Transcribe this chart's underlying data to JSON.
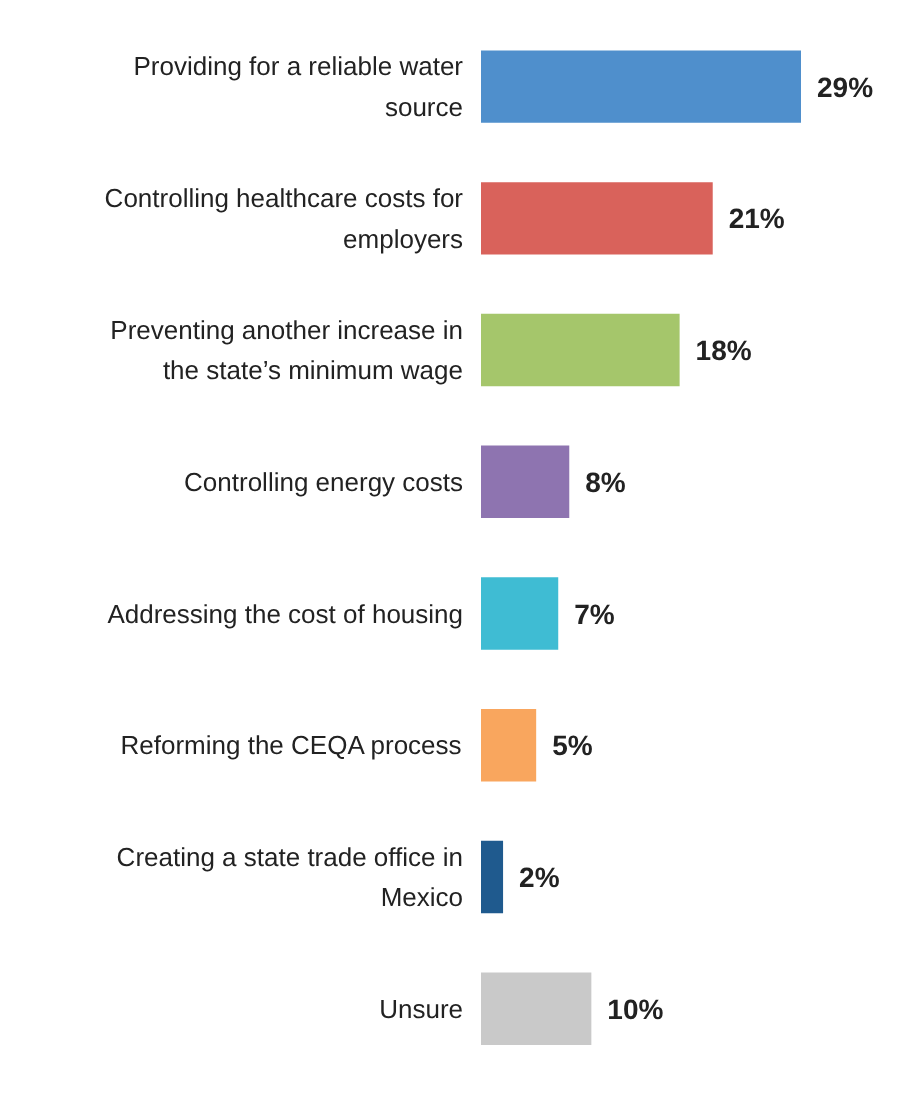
{
  "chart_data": {
    "type": "bar",
    "orientation": "horizontal",
    "categories": [
      "Providing for a reliable water source",
      "Controlling healthcare costs for employers",
      "Preventing another increase in the state’s minimum wage",
      "Controlling energy costs",
      "Addressing the cost of housing",
      "Reforming the CEQA process",
      "Creating a state trade office in Mexico",
      "Unsure"
    ],
    "values": [
      29,
      21,
      18,
      8,
      7,
      5,
      2,
      10
    ],
    "colors": [
      "#4f8fcc",
      "#d9625b",
      "#a5c66b",
      "#8e74b0",
      "#3fbcd3",
      "#f9a65e",
      "#1f5a8e",
      "#c9c9c9"
    ],
    "value_labels": [
      "29%",
      "21%",
      "18%",
      "8%",
      "7%",
      "5%",
      "2%",
      "10%"
    ]
  }
}
